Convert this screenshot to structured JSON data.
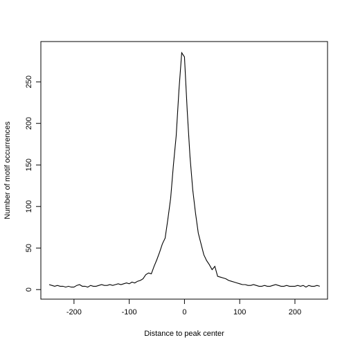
{
  "chart_data": {
    "type": "line",
    "x_label": "Distance to peak center",
    "y_label": "Number of motif occurrences",
    "x": [
      -245,
      -240,
      -235,
      -230,
      -225,
      -220,
      -215,
      -210,
      -205,
      -200,
      -195,
      -190,
      -185,
      -180,
      -175,
      -170,
      -165,
      -160,
      -155,
      -150,
      -145,
      -140,
      -135,
      -130,
      -125,
      -120,
      -115,
      -110,
      -105,
      -100,
      -95,
      -90,
      -85,
      -80,
      -75,
      -70,
      -65,
      -60,
      -55,
      -50,
      -45,
      -40,
      -35,
      -30,
      -25,
      -20,
      -15,
      -10,
      -5,
      0,
      5,
      10,
      15,
      20,
      25,
      30,
      35,
      40,
      45,
      50,
      55,
      60,
      65,
      70,
      75,
      80,
      85,
      90,
      95,
      100,
      105,
      110,
      115,
      120,
      125,
      130,
      135,
      140,
      145,
      150,
      155,
      160,
      165,
      170,
      175,
      180,
      185,
      190,
      195,
      200,
      205,
      210,
      215,
      220,
      225,
      230,
      235,
      240,
      245
    ],
    "series": [
      {
        "color": "#000000",
        "values": [
          6,
          5,
          4,
          5,
          4,
          4,
          3,
          4,
          3,
          3,
          5,
          6,
          4,
          4,
          3,
          5,
          4,
          4,
          5,
          6,
          5,
          5,
          6,
          5,
          6,
          7,
          6,
          7,
          8,
          7,
          9,
          8,
          10,
          11,
          13,
          18,
          20,
          19,
          28,
          36,
          45,
          55,
          62,
          85,
          110,
          150,
          185,
          240,
          285,
          280,
          215,
          160,
          120,
          92,
          68,
          55,
          42,
          35,
          30,
          24,
          28,
          16,
          15,
          14,
          13,
          11,
          10,
          9,
          8,
          7,
          6,
          6,
          5,
          5,
          6,
          5,
          4,
          4,
          5,
          4,
          4,
          5,
          6,
          5,
          4,
          4,
          5,
          4,
          4,
          4,
          5,
          4,
          5,
          3,
          5,
          4,
          4,
          5,
          4
        ]
      }
    ],
    "xlim": [
      -260,
      259
    ],
    "ylim": [
      -11.5,
      298.5
    ],
    "xticks": [
      -200,
      -100,
      0,
      100,
      200
    ],
    "yticks": [
      0,
      50,
      100,
      150,
      200,
      250
    ]
  }
}
